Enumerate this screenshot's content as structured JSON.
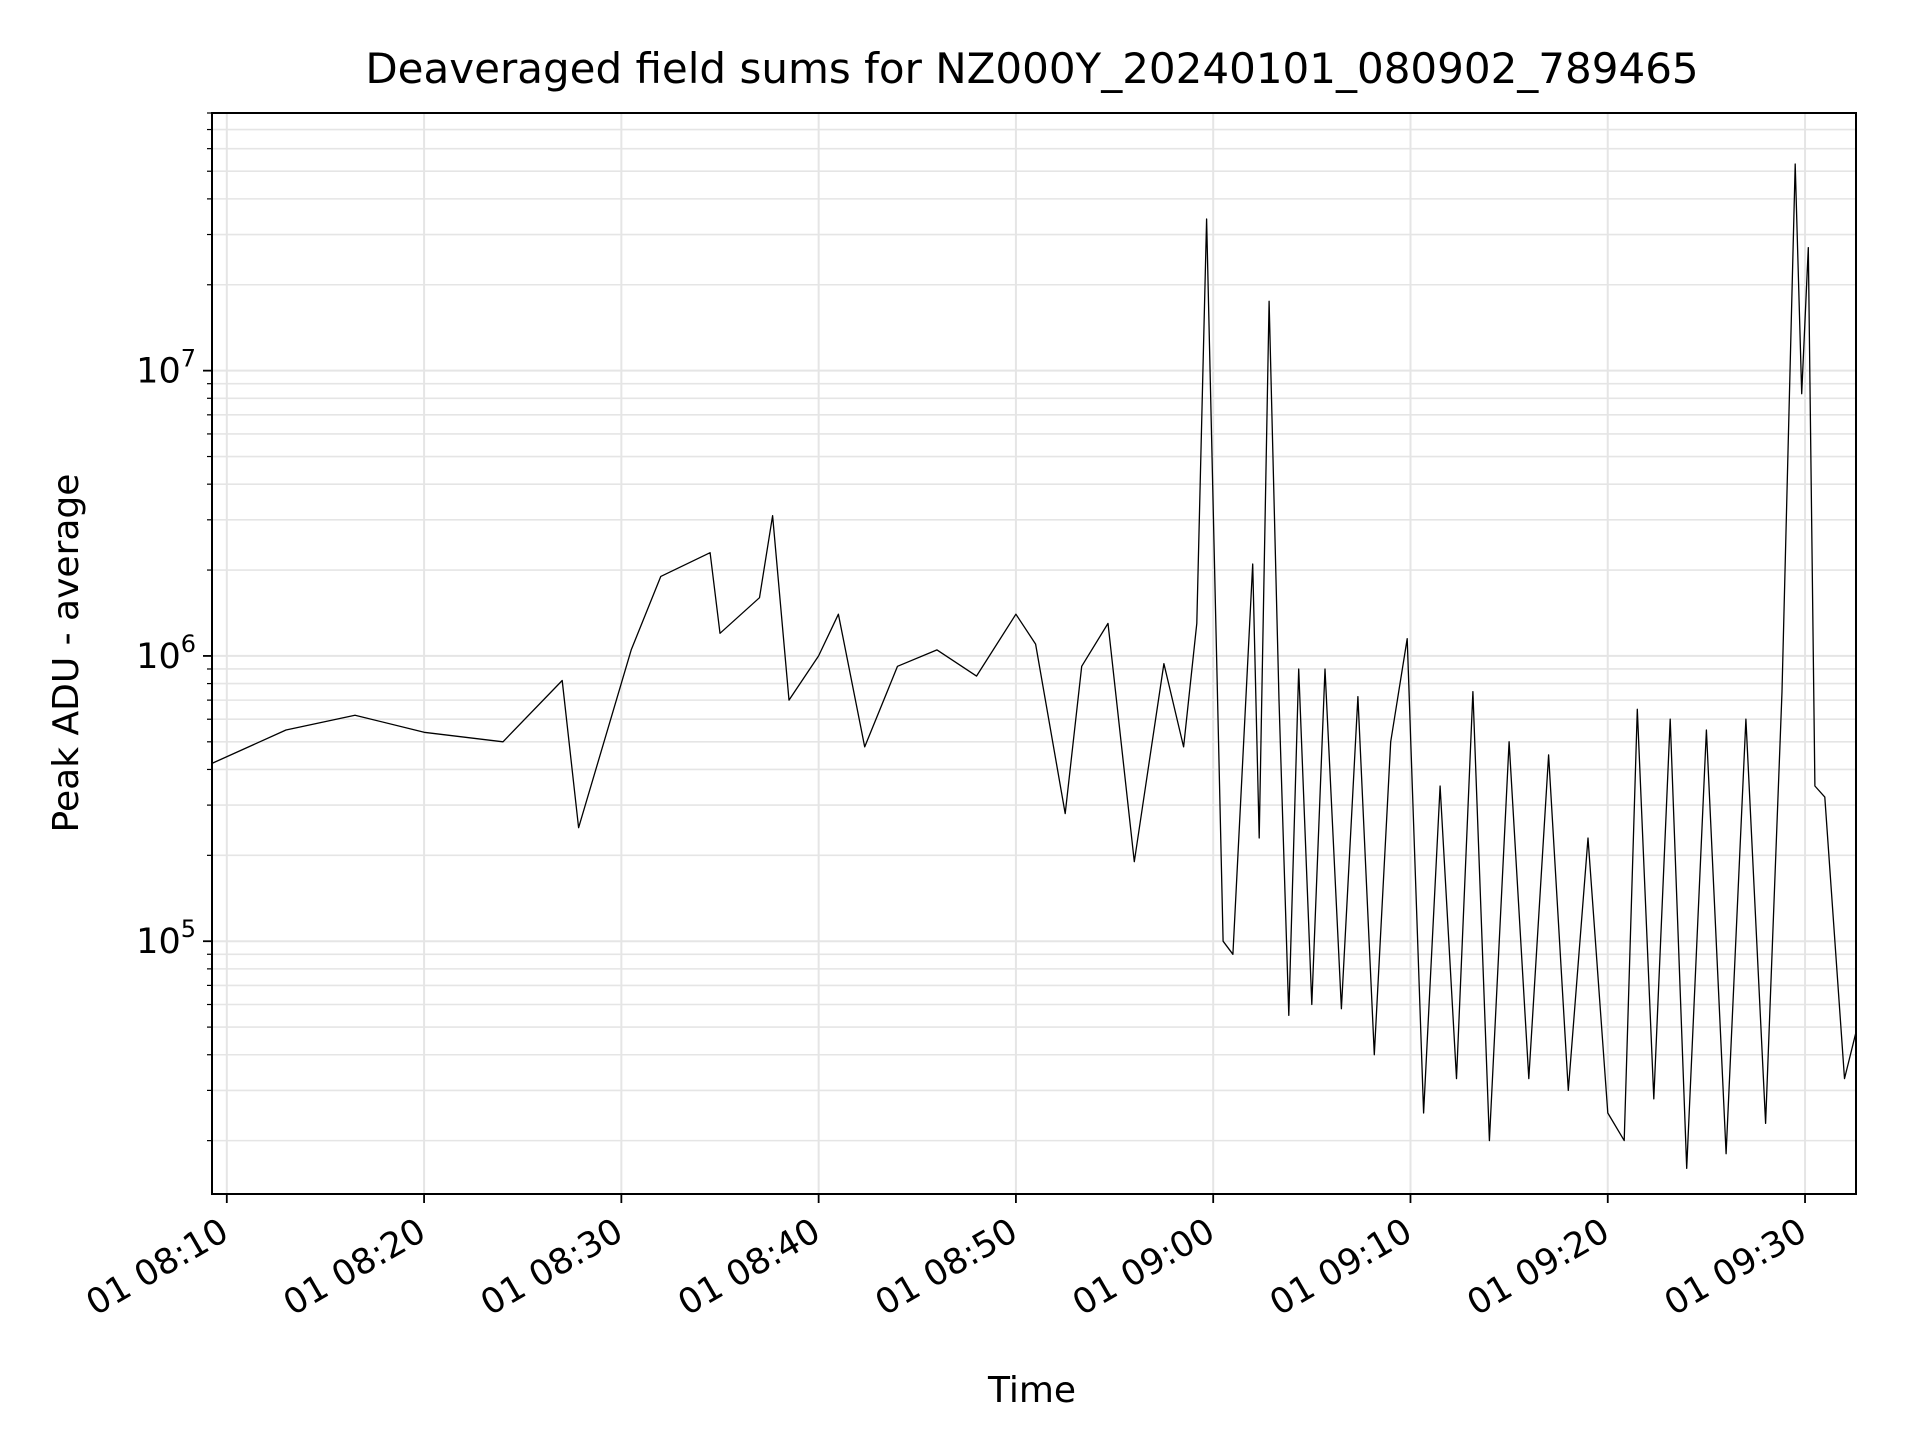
{
  "chart_data": {
    "type": "line",
    "title": "Deaveraged field sums for NZ000Y_20240101_080902_789465",
    "xlabel": "Time",
    "ylabel": "Peak ADU - average",
    "y_scale": "log",
    "grid": true,
    "line_color": "#000000",
    "grid_color": "#e5e5e5",
    "x_tick_labels": [
      "01 08:10",
      "01 08:20",
      "01 08:30",
      "01 08:40",
      "01 08:50",
      "01 09:00",
      "01 09:10",
      "01 09:20",
      "01 09:30"
    ],
    "x_range": [
      "2024-01-01 08:09:15",
      "2024-01-01 09:32:35"
    ],
    "y_range": [
      13000,
      80000000
    ],
    "y_major_ticks": [
      {
        "value": 100000,
        "base": "10",
        "exp": "5"
      },
      {
        "value": 1000000,
        "base": "10",
        "exp": "6"
      },
      {
        "value": 10000000,
        "base": "10",
        "exp": "7"
      }
    ],
    "series": [
      {
        "x": [
          "2024-01-01 08:09:15",
          "2024-01-01 08:13:00",
          "2024-01-01 08:16:30",
          "2024-01-01 08:20:00",
          "2024-01-01 08:24:00",
          "2024-01-01 08:27:00",
          "2024-01-01 08:27:50",
          "2024-01-01 08:30:30",
          "2024-01-01 08:32:00",
          "2024-01-01 08:34:30",
          "2024-01-01 08:35:00",
          "2024-01-01 08:37:00",
          "2024-01-01 08:37:40",
          "2024-01-01 08:38:30",
          "2024-01-01 08:40:00",
          "2024-01-01 08:41:00",
          "2024-01-01 08:42:20",
          "2024-01-01 08:44:00",
          "2024-01-01 08:46:00",
          "2024-01-01 08:48:00",
          "2024-01-01 08:50:00",
          "2024-01-01 08:51:00",
          "2024-01-01 08:52:30",
          "2024-01-01 08:53:20",
          "2024-01-01 08:54:40",
          "2024-01-01 08:56:00",
          "2024-01-01 08:57:30",
          "2024-01-01 08:58:30",
          "2024-01-01 08:59:10",
          "2024-01-01 08:59:40",
          "2024-01-01 09:00:30",
          "2024-01-01 09:01:00",
          "2024-01-01 09:02:00",
          "2024-01-01 09:02:20",
          "2024-01-01 09:02:50",
          "2024-01-01 09:03:20",
          "2024-01-01 09:03:50",
          "2024-01-01 09:04:20",
          "2024-01-01 09:05:00",
          "2024-01-01 09:05:40",
          "2024-01-01 09:06:30",
          "2024-01-01 09:07:20",
          "2024-01-01 09:08:10",
          "2024-01-01 09:09:00",
          "2024-01-01 09:09:50",
          "2024-01-01 09:10:40",
          "2024-01-01 09:11:30",
          "2024-01-01 09:12:20",
          "2024-01-01 09:13:10",
          "2024-01-01 09:14:00",
          "2024-01-01 09:15:00",
          "2024-01-01 09:16:00",
          "2024-01-01 09:17:00",
          "2024-01-01 09:18:00",
          "2024-01-01 09:19:00",
          "2024-01-01 09:20:00",
          "2024-01-01 09:20:50",
          "2024-01-01 09:21:30",
          "2024-01-01 09:22:20",
          "2024-01-01 09:23:10",
          "2024-01-01 09:24:00",
          "2024-01-01 09:25:00",
          "2024-01-01 09:26:00",
          "2024-01-01 09:27:00",
          "2024-01-01 09:28:00",
          "2024-01-01 09:28:50",
          "2024-01-01 09:29:30",
          "2024-01-01 09:29:50",
          "2024-01-01 09:30:10",
          "2024-01-01 09:30:30",
          "2024-01-01 09:31:00",
          "2024-01-01 09:32:00",
          "2024-01-01 09:32:35"
        ],
        "y": [
          420000,
          550000,
          620000,
          540000,
          500000,
          820000,
          250000,
          1050000,
          1900000,
          2300000,
          1200000,
          1600000,
          3100000,
          700000,
          1000000,
          1400000,
          480000,
          920000,
          1050000,
          850000,
          1400000,
          1100000,
          280000,
          920000,
          1300000,
          190000,
          940000,
          480000,
          1300000,
          34000000,
          100000,
          90000,
          2100000,
          230000,
          17500000,
          700000,
          55000,
          900000,
          60000,
          900000,
          58000,
          720000,
          40000,
          500000,
          1150000,
          25000,
          350000,
          33000,
          750000,
          20000,
          500000,
          33000,
          450000,
          30000,
          230000,
          25000,
          20000,
          650000,
          28000,
          600000,
          16000,
          550000,
          18000,
          600000,
          23000,
          750000,
          53000000,
          8300000,
          27000000,
          350000,
          320000,
          33000,
          48000
        ]
      }
    ]
  }
}
